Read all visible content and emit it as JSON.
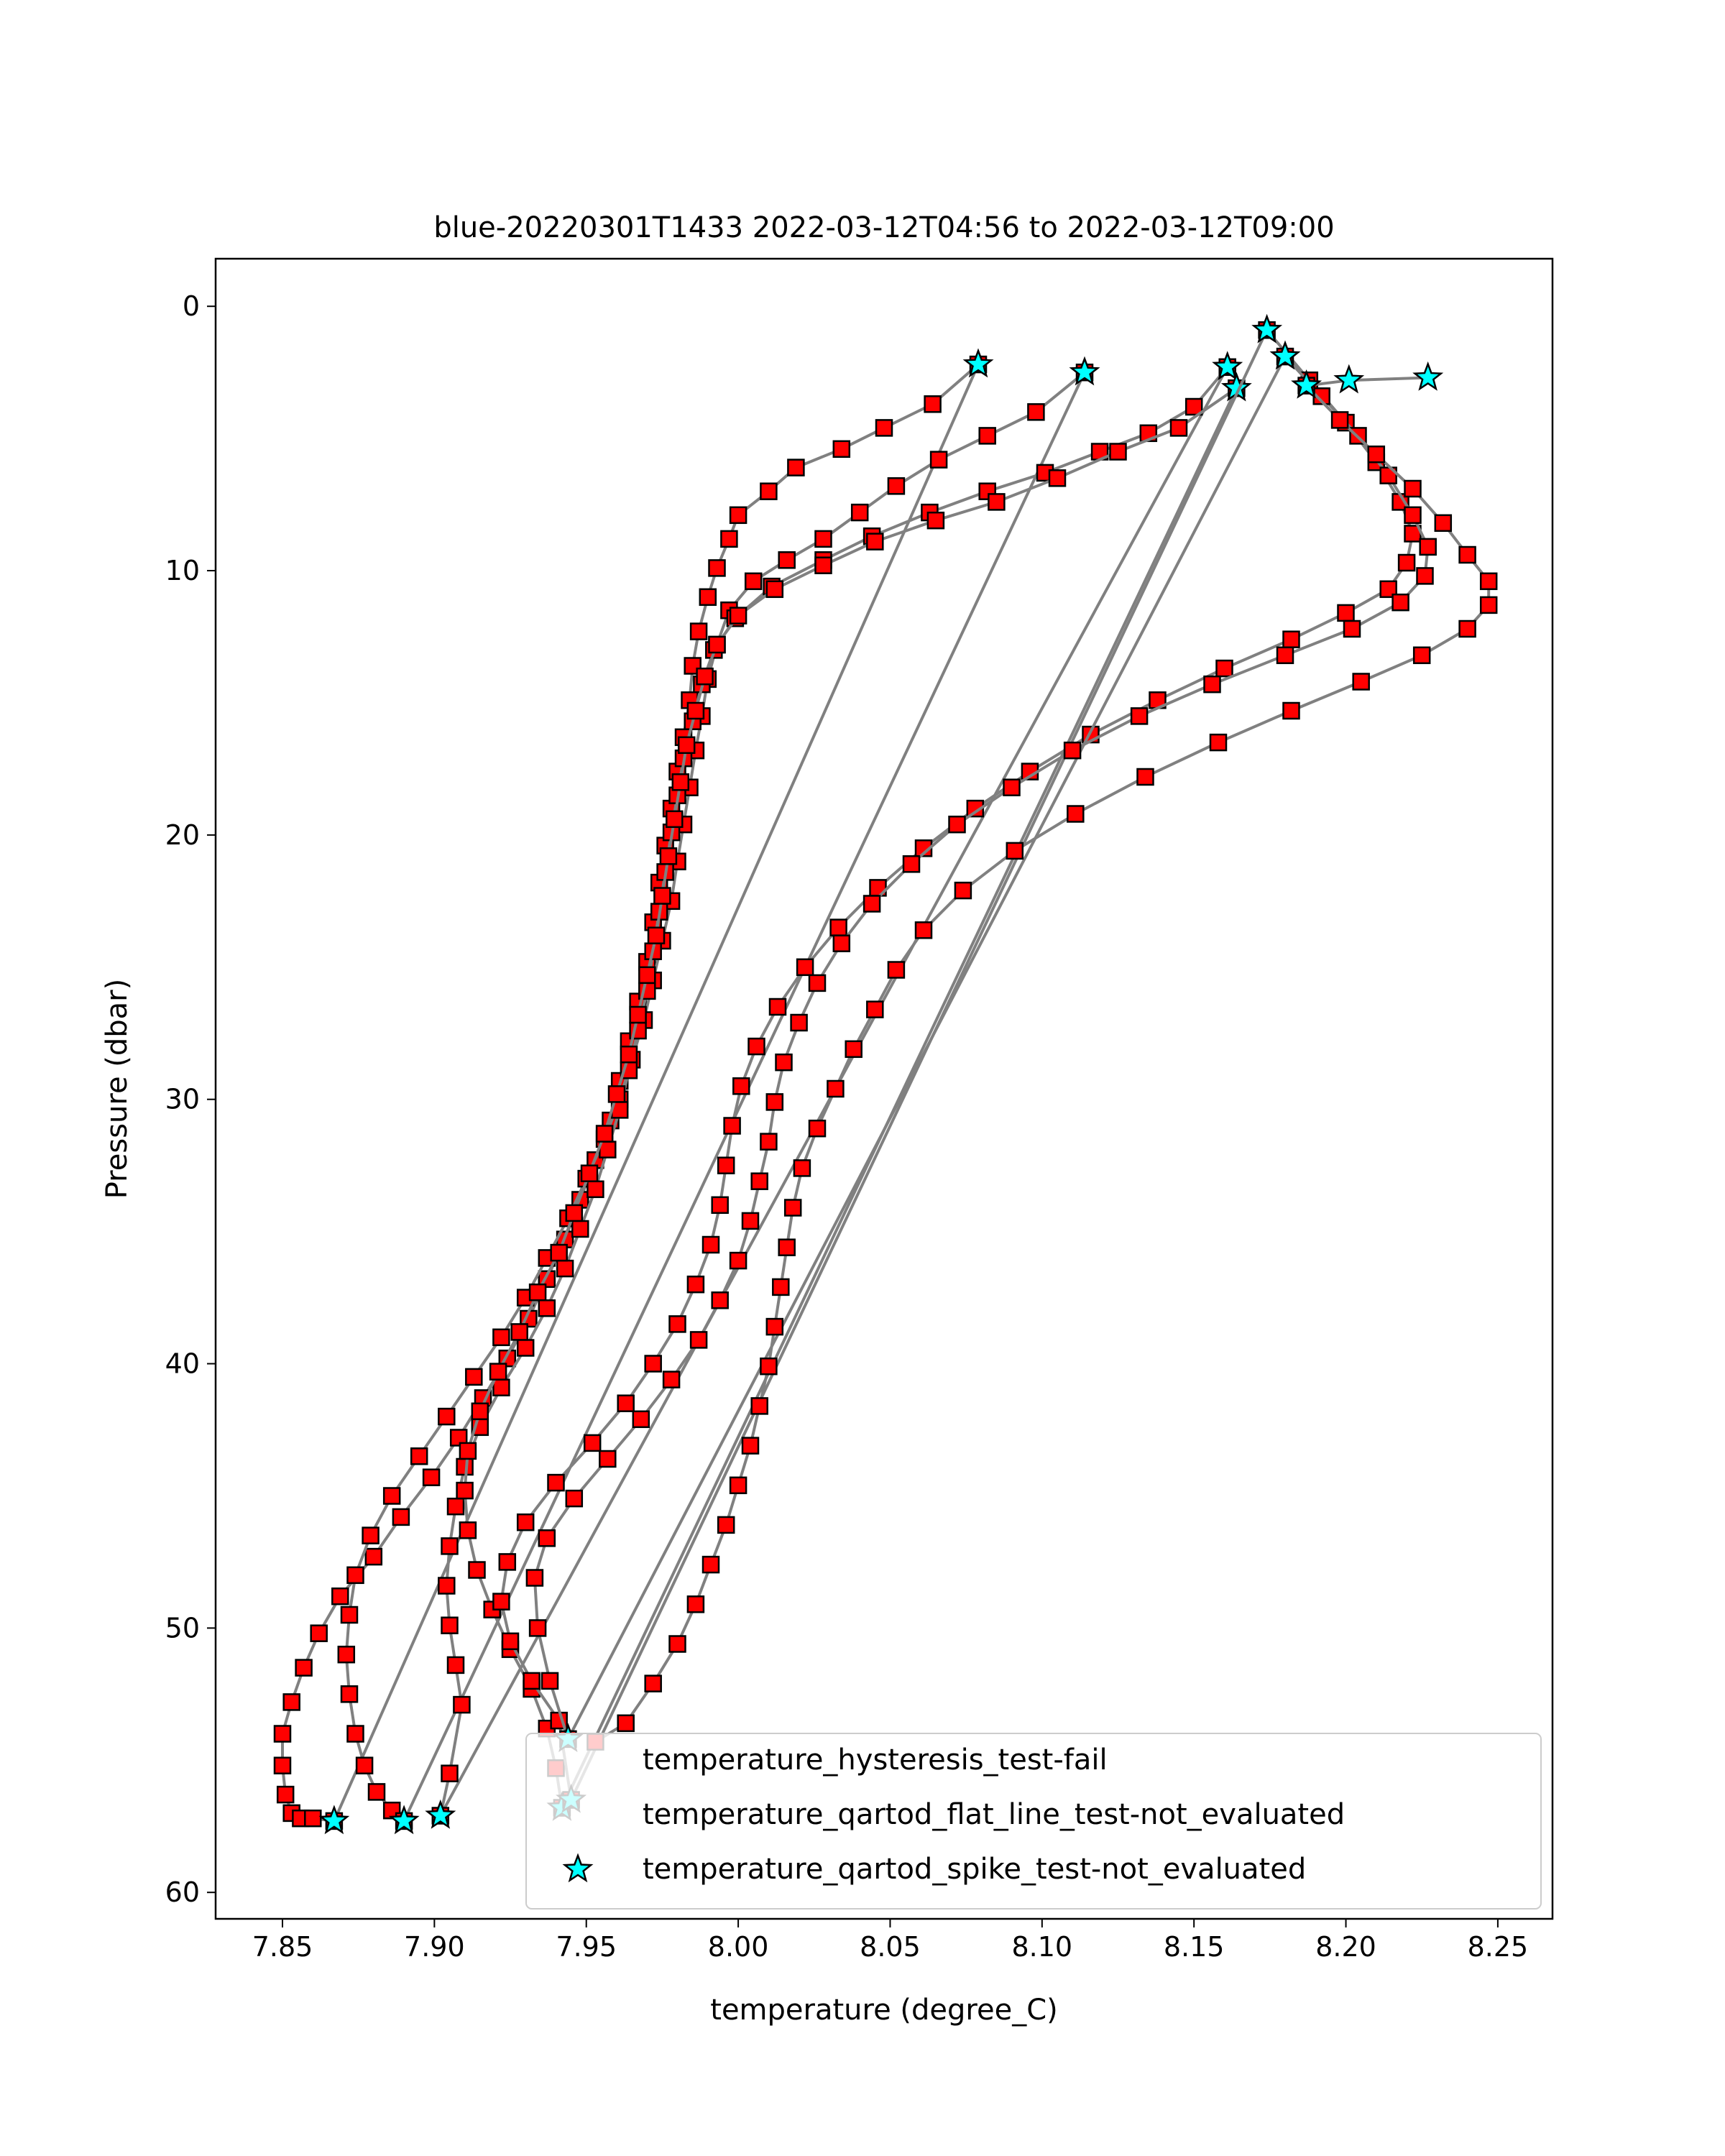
{
  "chart_data": {
    "type": "scatter",
    "title": "blue-20220301T1433 2022-03-12T04:56 to 2022-03-12T09:00",
    "xlabel": "temperature (degree_C)",
    "ylabel": "Pressure (dbar)",
    "xlim": [
      7.828,
      8.268
    ],
    "ylim": [
      61.0,
      -1.8
    ],
    "y_inverted": true,
    "grid": false,
    "legend_position": "lower-right",
    "xticks": [
      7.85,
      7.9,
      7.95,
      8.0,
      8.05,
      8.1,
      8.15,
      8.2,
      8.25
    ],
    "xtick_labels": [
      "7.85",
      "7.90",
      "7.95",
      "8.00",
      "8.05",
      "8.10",
      "8.15",
      "8.20",
      "8.25"
    ],
    "yticks": [
      0,
      10,
      20,
      30,
      40,
      50,
      60
    ],
    "ytick_labels": [
      "0",
      "10",
      "20",
      "30",
      "40",
      "50",
      "60"
    ],
    "colors": {
      "line": "#808080",
      "marker_fail": "#ff0000",
      "marker_star": "#00ffff",
      "marker_edge": "#000000"
    },
    "legend": [
      {
        "label": "temperature_hysteresis_test-fail",
        "marker": "none"
      },
      {
        "label": "temperature_qartod_flat_line_test-not_evaluated",
        "marker": "none"
      },
      {
        "label": "temperature_qartod_spike_test-not_evaluated",
        "marker": "star"
      }
    ],
    "series": [
      {
        "markers": "hysteresis_fail",
        "x": [
          8.079,
          8.064,
          8.048,
          8.034,
          8.019,
          8.01,
          8.0,
          7.997,
          7.993,
          7.99,
          7.987,
          7.985,
          7.984,
          7.982,
          7.98,
          7.978,
          7.976,
          7.974,
          7.972,
          7.97,
          7.967,
          7.964,
          7.961,
          7.958,
          7.953,
          7.948,
          7.943,
          7.937,
          7.931,
          7.924,
          7.916,
          7.908,
          7.899,
          7.889,
          7.88,
          7.869,
          7.862,
          7.857,
          7.853,
          7.85,
          7.85,
          7.851,
          7.853,
          7.856,
          7.86,
          7.867
        ],
        "y": [
          2.2,
          3.7,
          4.6,
          5.4,
          6.1,
          7.0,
          7.9,
          8.8,
          9.9,
          11.0,
          12.3,
          13.6,
          14.9,
          16.3,
          17.6,
          19.0,
          20.4,
          21.8,
          23.3,
          24.8,
          26.3,
          27.8,
          29.3,
          30.8,
          32.3,
          33.8,
          35.3,
          36.8,
          38.3,
          39.8,
          41.3,
          42.8,
          44.3,
          45.8,
          47.3,
          48.8,
          50.2,
          51.5,
          52.8,
          54.0,
          55.2,
          56.3,
          57.0,
          57.2,
          57.2,
          57.3
        ],
        "stars_x": [
          8.079,
          7.867
        ],
        "stars_y": [
          2.2,
          57.3
        ]
      },
      {
        "markers": "hysteresis_fail",
        "x": [
          8.114,
          8.098,
          8.082,
          8.066,
          8.052,
          8.04,
          8.028,
          8.016,
          8.005,
          7.997,
          7.993,
          7.99,
          7.988,
          7.986,
          7.984,
          7.982,
          7.98,
          7.978,
          7.975,
          7.972,
          7.969,
          7.965,
          7.961,
          7.956,
          7.95,
          7.944,
          7.937,
          7.93,
          7.922,
          7.913,
          7.904,
          7.895,
          7.886,
          7.879,
          7.874,
          7.872,
          7.871,
          7.872,
          7.874,
          7.877,
          7.881,
          7.886,
          7.89
        ],
        "y": [
          2.5,
          4.0,
          4.9,
          5.8,
          6.8,
          7.8,
          8.8,
          9.6,
          10.4,
          11.5,
          12.8,
          14.1,
          15.5,
          16.8,
          18.2,
          19.6,
          21.0,
          22.5,
          24.0,
          25.5,
          27.0,
          28.5,
          30.0,
          31.5,
          33.0,
          34.5,
          36.0,
          37.5,
          39.0,
          40.5,
          42.0,
          43.5,
          45.0,
          46.5,
          48.0,
          49.5,
          51.0,
          52.5,
          54.0,
          55.2,
          56.2,
          56.9,
          57.3
        ],
        "stars_x": [
          8.114,
          7.89
        ],
        "stars_y": [
          2.5,
          57.3
        ]
      },
      {
        "markers": "hysteresis_fail",
        "x": [
          8.161,
          8.15,
          8.135,
          8.119,
          8.101,
          8.082,
          8.063,
          8.044,
          8.028,
          8.011,
          7.999,
          7.992,
          7.988,
          7.985,
          7.982,
          7.98,
          7.978,
          7.976,
          7.974,
          7.972,
          7.97,
          7.967,
          7.964,
          7.961,
          7.957,
          7.953,
          7.948,
          7.943,
          7.937,
          7.93,
          7.922,
          7.915,
          7.91,
          7.907,
          7.905,
          7.904,
          7.905,
          7.907,
          7.909,
          7.905,
          7.902
        ],
        "y": [
          2.3,
          3.8,
          4.8,
          5.5,
          6.3,
          7.0,
          7.8,
          8.7,
          9.6,
          10.6,
          11.8,
          13.0,
          14.3,
          15.7,
          17.1,
          18.5,
          19.9,
          21.4,
          22.9,
          24.4,
          25.9,
          27.4,
          28.9,
          30.4,
          31.9,
          33.4,
          34.9,
          36.4,
          37.9,
          39.4,
          40.9,
          42.4,
          43.9,
          45.4,
          46.9,
          48.4,
          49.9,
          51.4,
          52.9,
          55.5,
          57.1
        ],
        "stars_x": [
          8.161,
          7.902
        ],
        "stars_y": [
          2.3,
          57.1
        ]
      },
      {
        "markers": "hysteresis_fail",
        "x": [
          8.164,
          8.145,
          8.125,
          8.105,
          8.085,
          8.065,
          8.045,
          8.028,
          8.012,
          8.0,
          7.993,
          7.989,
          7.986,
          7.983,
          7.981,
          7.979,
          7.977,
          7.975,
          7.973,
          7.97,
          7.967,
          7.964,
          7.96,
          7.956,
          7.951,
          7.946,
          7.941,
          7.934,
          7.928,
          7.921,
          7.915,
          7.911,
          7.91,
          7.911,
          7.914,
          7.919,
          7.925,
          7.932,
          7.937,
          7.94,
          7.942
        ],
        "y": [
          3.1,
          4.6,
          5.5,
          6.5,
          7.4,
          8.1,
          8.9,
          9.8,
          10.7,
          11.7,
          12.8,
          14.0,
          15.3,
          16.6,
          18.0,
          19.4,
          20.8,
          22.3,
          23.8,
          25.3,
          26.8,
          28.3,
          29.8,
          31.3,
          32.8,
          34.3,
          35.8,
          37.3,
          38.8,
          40.3,
          41.8,
          43.3,
          44.8,
          46.3,
          47.8,
          49.3,
          50.8,
          52.3,
          53.8,
          55.3,
          56.8
        ],
        "stars_x": [
          8.164,
          7.942
        ],
        "stars_y": [
          3.1,
          56.8
        ]
      },
      {
        "markers": "hysteresis_fail",
        "x": [
          8.174,
          8.188,
          8.2,
          8.21,
          8.218,
          8.222,
          8.22,
          8.214,
          8.2,
          8.182,
          8.16,
          8.138,
          8.116,
          8.096,
          8.078,
          8.061,
          8.046,
          8.033,
          8.022,
          8.013,
          8.006,
          8.001,
          7.998,
          7.996,
          7.994,
          7.991,
          7.986,
          7.98,
          7.972,
          7.963,
          7.952,
          7.94,
          7.93,
          7.924,
          7.922,
          7.925,
          7.932,
          7.941,
          7.945
        ],
        "y": [
          0.9,
          2.8,
          4.4,
          5.9,
          7.4,
          8.6,
          9.7,
          10.7,
          11.6,
          12.6,
          13.7,
          14.9,
          16.2,
          17.6,
          19.0,
          20.5,
          22.0,
          23.5,
          25.0,
          26.5,
          28.0,
          29.5,
          31.0,
          32.5,
          34.0,
          35.5,
          37.0,
          38.5,
          40.0,
          41.5,
          43.0,
          44.5,
          46.0,
          47.5,
          49.0,
          50.5,
          52.0,
          53.5,
          56.5
        ],
        "stars_x": [
          8.174,
          7.945
        ],
        "stars_y": [
          0.9,
          56.5
        ]
      },
      {
        "markers": "hysteresis_fail",
        "x": [
          8.18,
          8.192,
          8.204,
          8.214,
          8.222,
          8.227,
          8.226,
          8.218,
          8.202,
          8.18,
          8.156,
          8.132,
          8.11,
          8.09,
          8.072,
          8.057,
          8.044,
          8.034,
          8.026,
          8.02,
          8.015,
          8.012,
          8.01,
          8.007,
          8.004,
          8.0,
          7.994,
          7.987,
          7.978,
          7.968,
          7.957,
          7.946,
          7.937,
          7.933,
          7.934,
          7.938,
          7.944
        ],
        "y": [
          1.9,
          3.4,
          4.9,
          6.4,
          7.9,
          9.1,
          10.2,
          11.2,
          12.2,
          13.2,
          14.3,
          15.5,
          16.8,
          18.2,
          19.6,
          21.1,
          22.6,
          24.1,
          25.6,
          27.1,
          28.6,
          30.1,
          31.6,
          33.1,
          34.6,
          36.1,
          37.6,
          39.1,
          40.6,
          42.1,
          43.6,
          45.1,
          46.6,
          48.1,
          50.0,
          52.0,
          54.2
        ],
        "stars_x": [
          8.18,
          7.944
        ],
        "stars_y": [
          1.9,
          54.2
        ]
      },
      {
        "markers": "hysteresis_fail",
        "x": [
          8.187,
          8.198,
          8.21,
          8.222,
          8.232,
          8.24,
          8.247,
          8.247,
          8.24,
          8.225,
          8.205,
          8.182,
          8.158,
          8.134,
          8.111,
          8.091,
          8.074,
          8.061,
          8.052,
          8.045,
          8.038,
          8.032,
          8.026,
          8.021,
          8.018,
          8.016,
          8.014,
          8.012,
          8.01,
          8.007,
          8.004,
          8.0,
          7.996,
          7.991,
          7.986,
          7.98,
          7.972,
          7.963,
          7.953
        ],
        "y": [
          3.0,
          4.3,
          5.6,
          6.9,
          8.2,
          9.4,
          10.4,
          11.3,
          12.2,
          13.2,
          14.2,
          15.3,
          16.5,
          17.8,
          19.2,
          20.6,
          22.1,
          23.6,
          25.1,
          26.6,
          28.1,
          29.6,
          31.1,
          32.6,
          34.1,
          35.6,
          37.1,
          38.6,
          40.1,
          41.6,
          43.1,
          44.6,
          46.1,
          47.6,
          49.1,
          50.6,
          52.1,
          53.6,
          54.3
        ],
        "stars_x": [
          8.187,
          8.201,
          8.227
        ],
        "stars_y": [
          3.0,
          2.8,
          2.7
        ]
      }
    ]
  }
}
